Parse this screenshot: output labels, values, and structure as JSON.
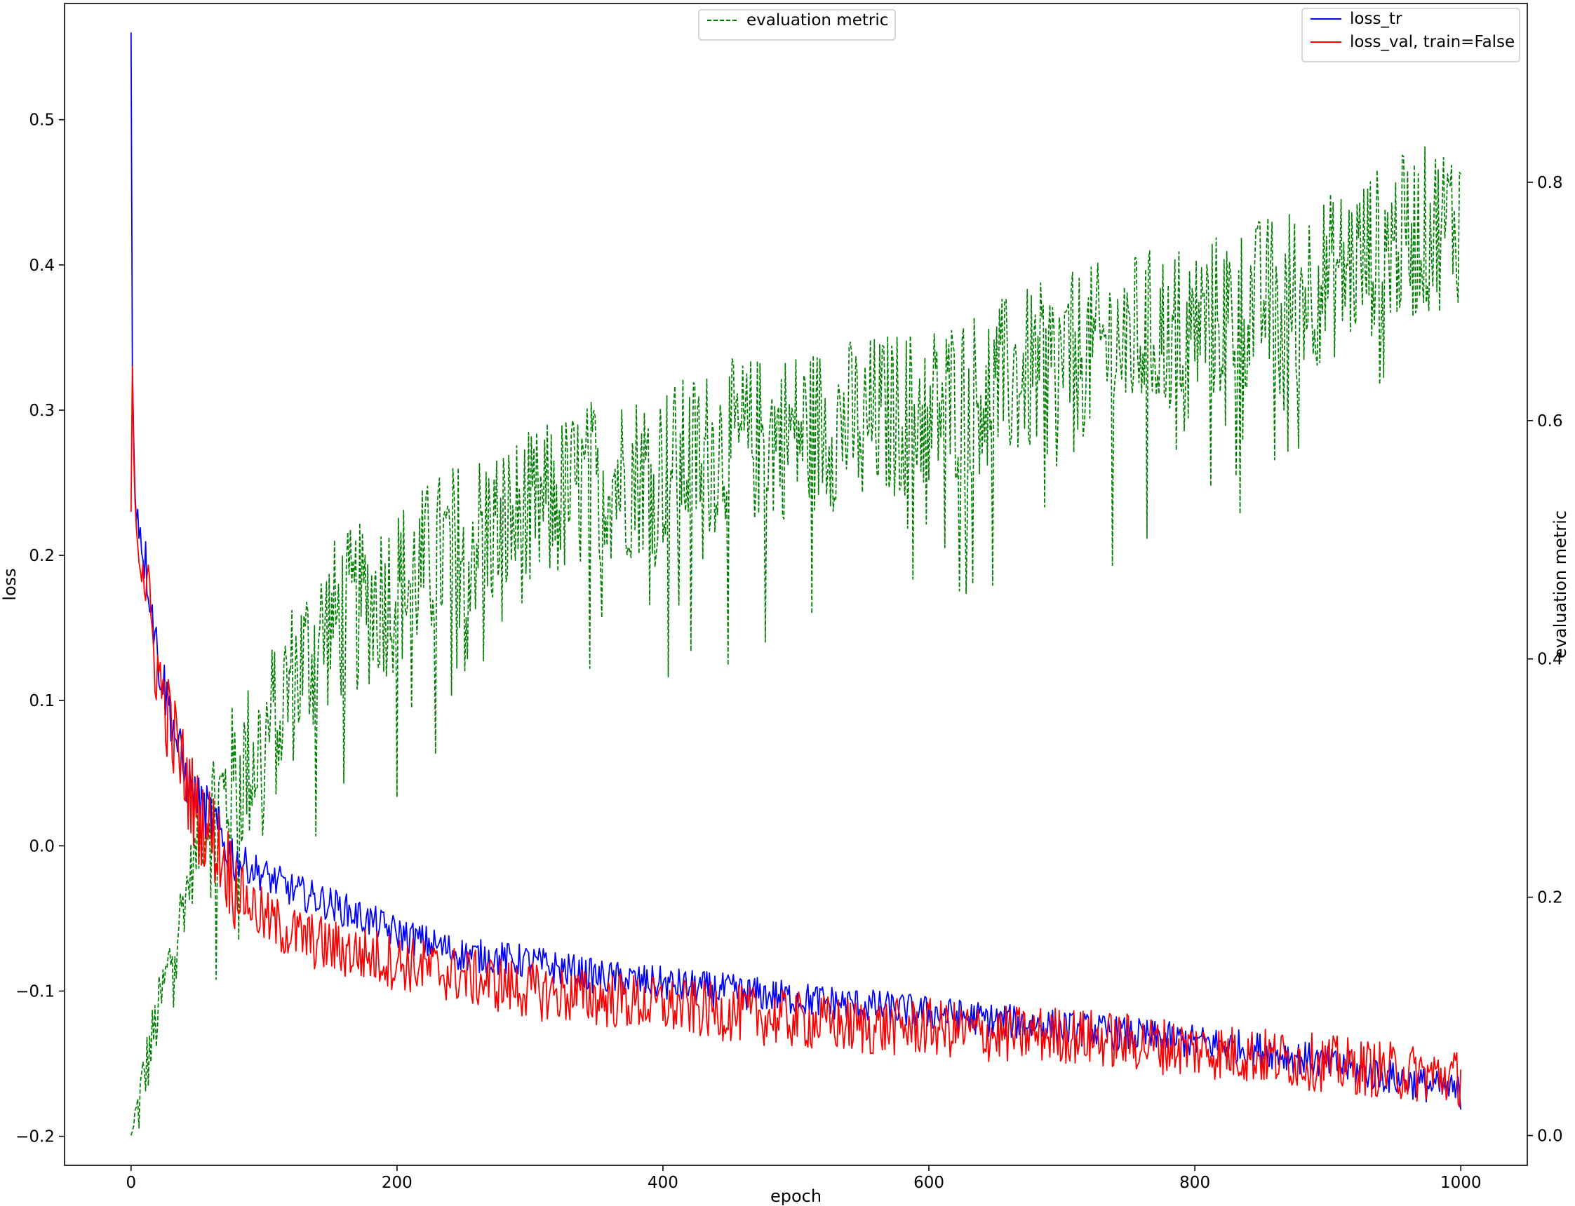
{
  "chart_data": {
    "type": "line",
    "xlabel": "epoch",
    "ylabel": "loss",
    "y2label": "evaluation metric",
    "xlim": [
      -50,
      1050
    ],
    "ylim": [
      -0.22,
      0.58
    ],
    "y2lim": [
      -0.025,
      0.95
    ],
    "xticks": [
      0,
      200,
      400,
      600,
      800,
      1000
    ],
    "xtick_labels": [
      "0",
      "200",
      "400",
      "600",
      "800",
      "1000"
    ],
    "yticks": [
      -0.2,
      -0.1,
      0.0,
      0.1,
      0.2,
      0.3,
      0.4,
      0.5
    ],
    "ytick_labels": [
      "−0.2",
      "−0.1",
      "0.0",
      "0.1",
      "0.2",
      "0.3",
      "0.4",
      "0.5"
    ],
    "y2ticks": [
      0.0,
      0.2,
      0.4,
      0.6,
      0.8
    ],
    "y2tick_labels": [
      "0.0",
      "0.2",
      "0.4",
      "0.6",
      "0.8"
    ],
    "grid": false,
    "legend_left": {
      "placement": "top-center",
      "entries": [
        {
          "label": "evaluation metric",
          "color": "#008000",
          "style": "dashed"
        }
      ]
    },
    "legend_right": {
      "placement": "top-right",
      "entries": [
        {
          "label": "loss_tr",
          "color": "#0000ff",
          "style": "solid"
        },
        {
          "label": "loss_val, train=False",
          "color": "#ff0000",
          "style": "solid"
        }
      ]
    },
    "series": [
      {
        "name": "loss_tr",
        "axis": "left",
        "color": "#0000ff",
        "style": "solid",
        "x": [
          0,
          1,
          2,
          3,
          5,
          10,
          15,
          20,
          30,
          40,
          50,
          60,
          70,
          80,
          100,
          120,
          150,
          200,
          250,
          300,
          350,
          400,
          450,
          500,
          550,
          600,
          650,
          700,
          750,
          800,
          850,
          900,
          950,
          1000
        ],
        "y": [
          0.56,
          0.33,
          0.28,
          0.25,
          0.23,
          0.2,
          0.17,
          0.13,
          0.09,
          0.05,
          0.03,
          0.02,
          0.0,
          -0.01,
          -0.02,
          -0.03,
          -0.04,
          -0.06,
          -0.075,
          -0.08,
          -0.09,
          -0.095,
          -0.1,
          -0.105,
          -0.11,
          -0.115,
          -0.12,
          -0.125,
          -0.13,
          -0.135,
          -0.14,
          -0.15,
          -0.16,
          -0.17
        ],
        "noise": 0.012
      },
      {
        "name": "loss_val, train=False",
        "axis": "left",
        "color": "#ff0000",
        "style": "solid",
        "x": [
          0,
          1,
          2,
          3,
          5,
          10,
          15,
          20,
          30,
          40,
          50,
          60,
          70,
          80,
          100,
          120,
          150,
          200,
          250,
          300,
          350,
          400,
          450,
          500,
          550,
          600,
          650,
          700,
          750,
          800,
          850,
          900,
          950,
          1000
        ],
        "y": [
          0.23,
          0.33,
          0.27,
          0.24,
          0.22,
          0.19,
          0.15,
          0.12,
          0.08,
          0.05,
          0.02,
          0.01,
          -0.01,
          -0.03,
          -0.05,
          -0.06,
          -0.07,
          -0.08,
          -0.09,
          -0.1,
          -0.105,
          -0.11,
          -0.115,
          -0.12,
          -0.125,
          -0.125,
          -0.13,
          -0.13,
          -0.135,
          -0.14,
          -0.145,
          -0.15,
          -0.155,
          -0.16
        ],
        "noise": 0.02
      },
      {
        "name": "evaluation metric",
        "axis": "right",
        "color": "#008000",
        "style": "dashed",
        "x": [
          0,
          5,
          10,
          20,
          30,
          40,
          50,
          60,
          70,
          80,
          100,
          120,
          150,
          200,
          250,
          300,
          350,
          400,
          450,
          500,
          550,
          600,
          650,
          700,
          750,
          800,
          850,
          900,
          950,
          1000
        ],
        "y": [
          0.0,
          0.02,
          0.05,
          0.1,
          0.15,
          0.2,
          0.24,
          0.27,
          0.28,
          0.3,
          0.33,
          0.38,
          0.43,
          0.46,
          0.5,
          0.52,
          0.55,
          0.56,
          0.58,
          0.59,
          0.6,
          0.61,
          0.63,
          0.65,
          0.67,
          0.68,
          0.7,
          0.72,
          0.75,
          0.77
        ],
        "noise": 0.06
      }
    ]
  }
}
